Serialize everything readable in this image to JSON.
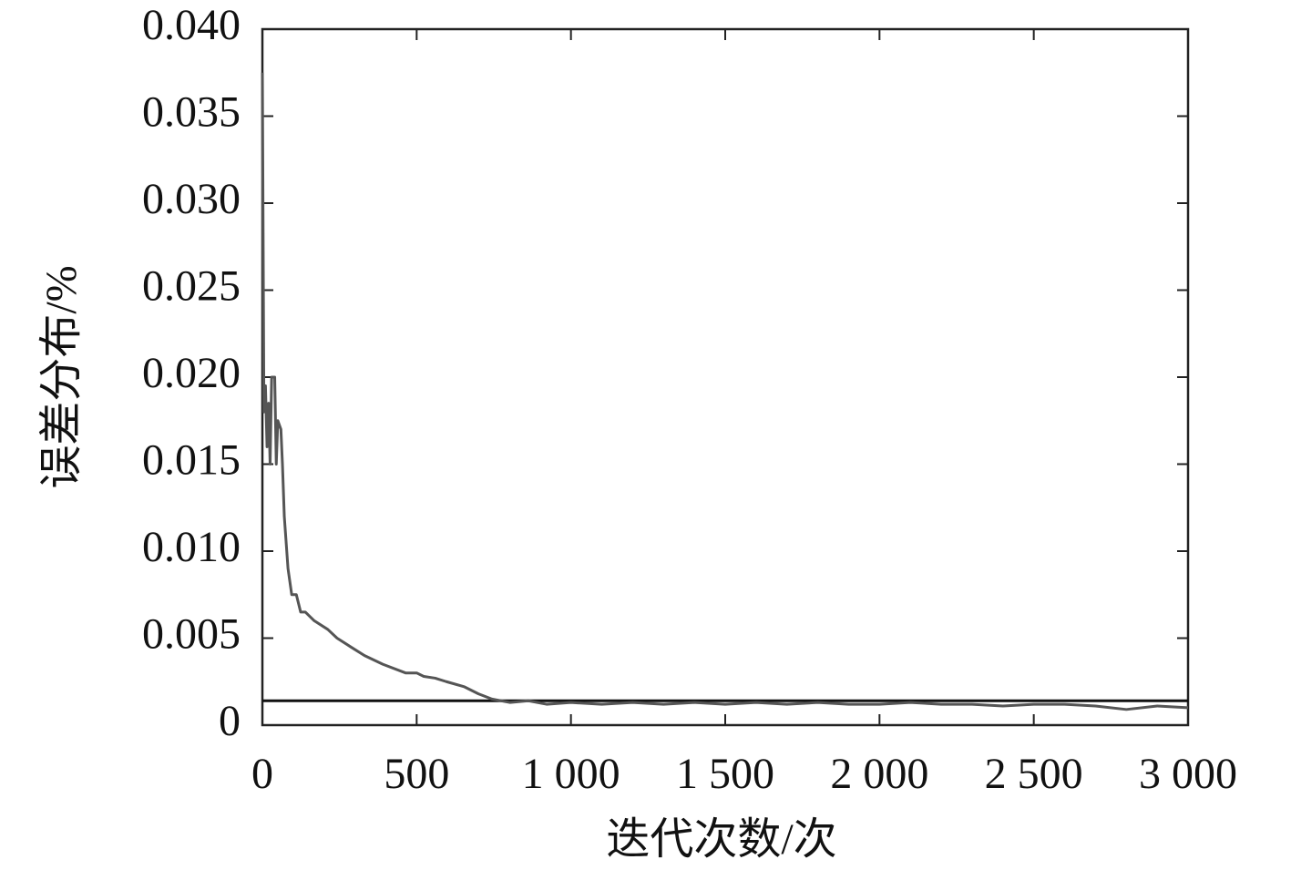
{
  "chart_data": {
    "type": "line",
    "xlabel": "迭代次数/次",
    "ylabel": "误差分布/%",
    "x": [
      0,
      5,
      10,
      15,
      20,
      25,
      30,
      40,
      45,
      50,
      60,
      65,
      71,
      83,
      95,
      110,
      124,
      139,
      168,
      212,
      242,
      286,
      331,
      390,
      464,
      500,
      523,
      560,
      596,
      655,
      700,
      744,
      803,
      862,
      921,
      1000,
      1100,
      1200,
      1300,
      1400,
      1500,
      1600,
      1700,
      1800,
      1900,
      2000,
      2100,
      2200,
      2300,
      2400,
      2500,
      2600,
      2700,
      2800,
      2900,
      3000
    ],
    "series": [
      {
        "color": "#555555",
        "values": [
          0.0375,
          0.018,
          0.0195,
          0.016,
          0.0185,
          0.015,
          0.02,
          0.02,
          0.015,
          0.0175,
          0.017,
          0.015,
          0.012,
          0.009,
          0.0075,
          0.0075,
          0.0065,
          0.0065,
          0.006,
          0.0055,
          0.005,
          0.0045,
          0.004,
          0.0035,
          0.003,
          0.003,
          0.0028,
          0.0027,
          0.0025,
          0.0022,
          0.0018,
          0.0015,
          0.0013,
          0.0014,
          0.0012,
          0.0013,
          0.0012,
          0.0013,
          0.0012,
          0.0013,
          0.0012,
          0.0013,
          0.0012,
          0.0013,
          0.0012,
          0.0012,
          0.0013,
          0.0012,
          0.0012,
          0.0011,
          0.0012,
          0.0012,
          0.0011,
          0.0009,
          0.0011,
          0.001
        ]
      }
    ],
    "hlines": [
      0.0014
    ],
    "xlim": [
      0,
      3000
    ],
    "xticks": [
      0,
      500,
      {
        "value": 1000,
        "label": "1 000"
      },
      {
        "value": 1500,
        "label": "1 500"
      },
      {
        "value": 2000,
        "label": "2 000"
      },
      {
        "value": 2500,
        "label": "2 500"
      },
      {
        "value": 3000,
        "label": "3 000"
      }
    ],
    "ylim": [
      0,
      0.04
    ],
    "yticks": [
      0,
      0.005,
      {
        "value": 0.01,
        "label": "0.010"
      },
      0.015,
      {
        "value": 0.02,
        "label": "0.020"
      },
      0.025,
      {
        "value": 0.03,
        "label": "0.030"
      },
      0.035,
      {
        "value": 0.04,
        "label": "0.040"
      }
    ],
    "grid": false
  }
}
